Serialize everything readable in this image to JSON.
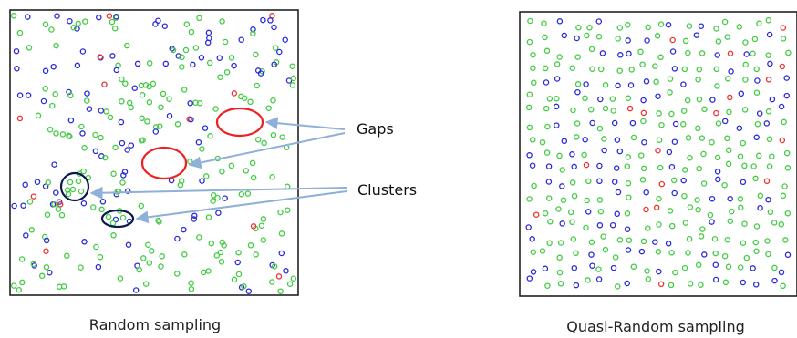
{
  "figure": {
    "panels": [
      {
        "id": "random",
        "caption": "Random sampling"
      },
      {
        "id": "quasi",
        "caption": "Quasi-Random sampling"
      }
    ],
    "annotations": {
      "gaps_label": "Gaps",
      "clusters_label": "Clusters"
    },
    "colors": {
      "green": "#44cc44",
      "blue": "#2b2bd8",
      "red": "#ee3333",
      "gap_ring": "#ee2222",
      "cluster_ring": "#0c1a4a",
      "arrow": "#8fb0d8",
      "frame": "#222222"
    }
  }
}
